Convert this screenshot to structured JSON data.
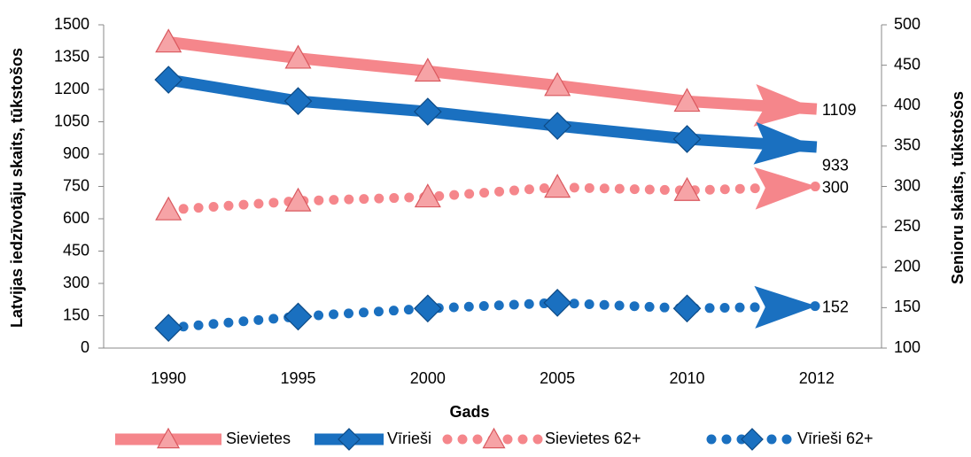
{
  "chart_data": {
    "type": "line",
    "xlabel": "Gads",
    "ylabel": "Latvijas  iedzīvotāju skaits, tūkstošos",
    "y2label": "Senioru skaits, tūkstošos",
    "categories": [
      "1990",
      "1995",
      "2000",
      "2005",
      "2010",
      "2012"
    ],
    "ylim": [
      0,
      1500
    ],
    "yticks": [
      0,
      150,
      300,
      450,
      600,
      750,
      900,
      1050,
      1200,
      1350,
      1500
    ],
    "y2lim": [
      100,
      500
    ],
    "y2ticks": [
      100,
      150,
      200,
      250,
      300,
      350,
      400,
      450,
      500
    ],
    "series": [
      {
        "name": "Sievietes",
        "color": "#f5868b",
        "marker": "triangle",
        "style": "solid",
        "values": [
          1420,
          1345,
          1285,
          1218,
          1145,
          1109
        ]
      },
      {
        "name": "Vīrieši",
        "color": "#1a70c0",
        "marker": "diamond",
        "style": "solid",
        "values": [
          1245,
          1146,
          1097,
          1031,
          970,
          933
        ]
      },
      {
        "name": "Sievietes 62+",
        "color": "#f5868b",
        "marker": "triangle",
        "style": "dotted",
        "axis": "y2",
        "values": [
          271,
          282,
          287,
          299,
          295,
          300
        ]
      },
      {
        "name": "Vīrieši 62+",
        "color": "#1a70c0",
        "marker": "diamond",
        "style": "dotted",
        "axis": "y2",
        "values": [
          125,
          139,
          149,
          156,
          149,
          152
        ]
      }
    ]
  }
}
